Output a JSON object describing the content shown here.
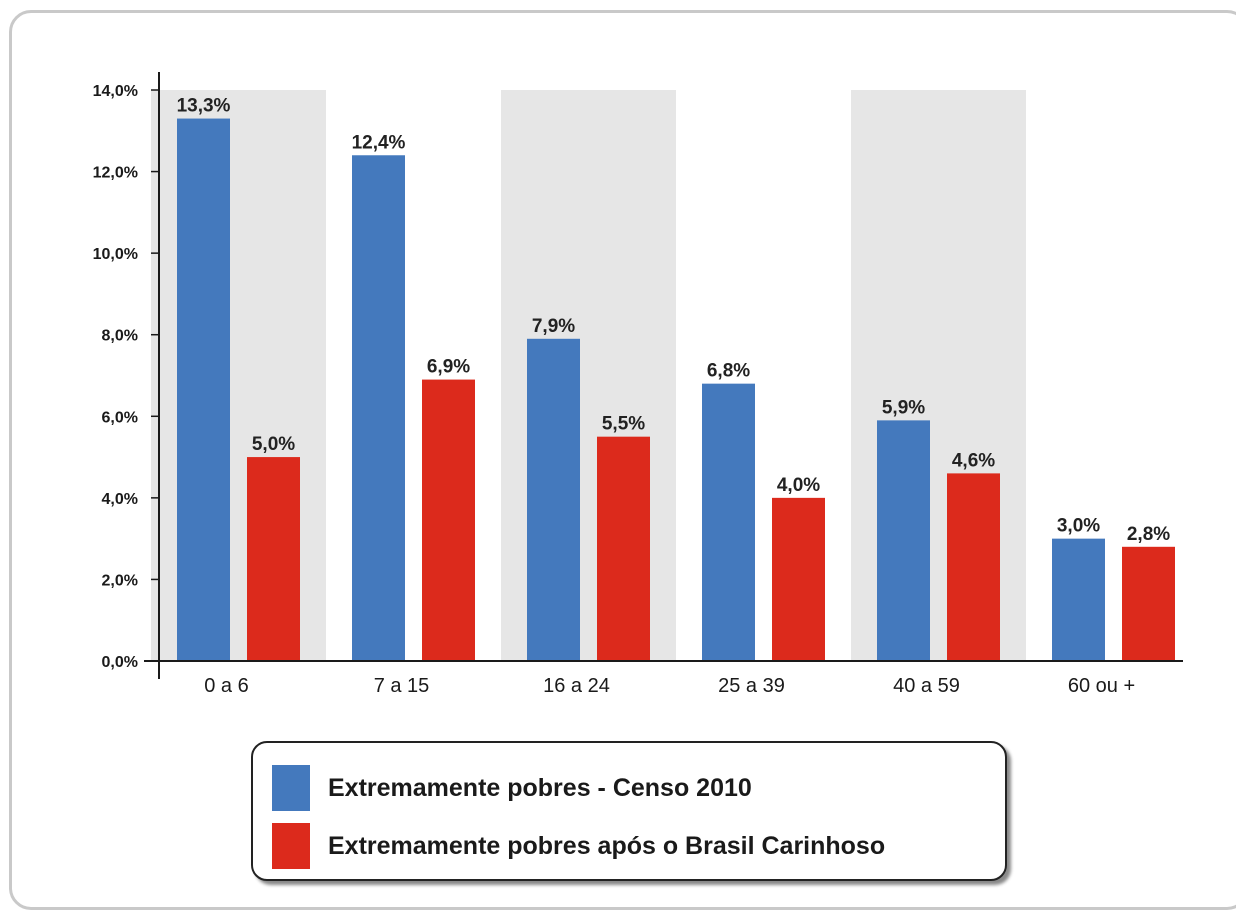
{
  "chart_data": {
    "type": "bar",
    "categories": [
      "0 a 6",
      "7 a 15",
      "16 a 24",
      "25 a 39",
      "40 a 59",
      "60 ou +"
    ],
    "series": [
      {
        "name": "Extremamente pobres - Censo 2010",
        "color": "#4479bd",
        "values": [
          13.3,
          12.4,
          7.9,
          6.8,
          5.9,
          3.0
        ],
        "labels": [
          "13,3%",
          "12,4%",
          "7,9%",
          "6,8%",
          "5,9%",
          "3,0%"
        ]
      },
      {
        "name": "Extremamente pobres após o Brasil Carinhoso",
        "color": "#dc2a1c",
        "values": [
          5.0,
          6.9,
          5.5,
          4.0,
          4.6,
          2.8
        ],
        "labels": [
          "5,0%",
          "6,9%",
          "5,5%",
          "4,0%",
          "4,6%",
          "2,8%"
        ]
      }
    ],
    "y_ticks": [
      0,
      2,
      4,
      6,
      8,
      10,
      12,
      14
    ],
    "y_tick_labels": [
      "0,0%",
      "2,0%",
      "4,0%",
      "6,0%",
      "8,0%",
      "10,0%",
      "12,0%",
      "14,0%"
    ],
    "ylim": [
      0,
      14
    ],
    "shaded_bands": [
      "0 a 6",
      "16 a 24",
      "40 a 59"
    ],
    "band_color": "#e6e6e6",
    "grid": false,
    "legend_position": "bottom"
  }
}
